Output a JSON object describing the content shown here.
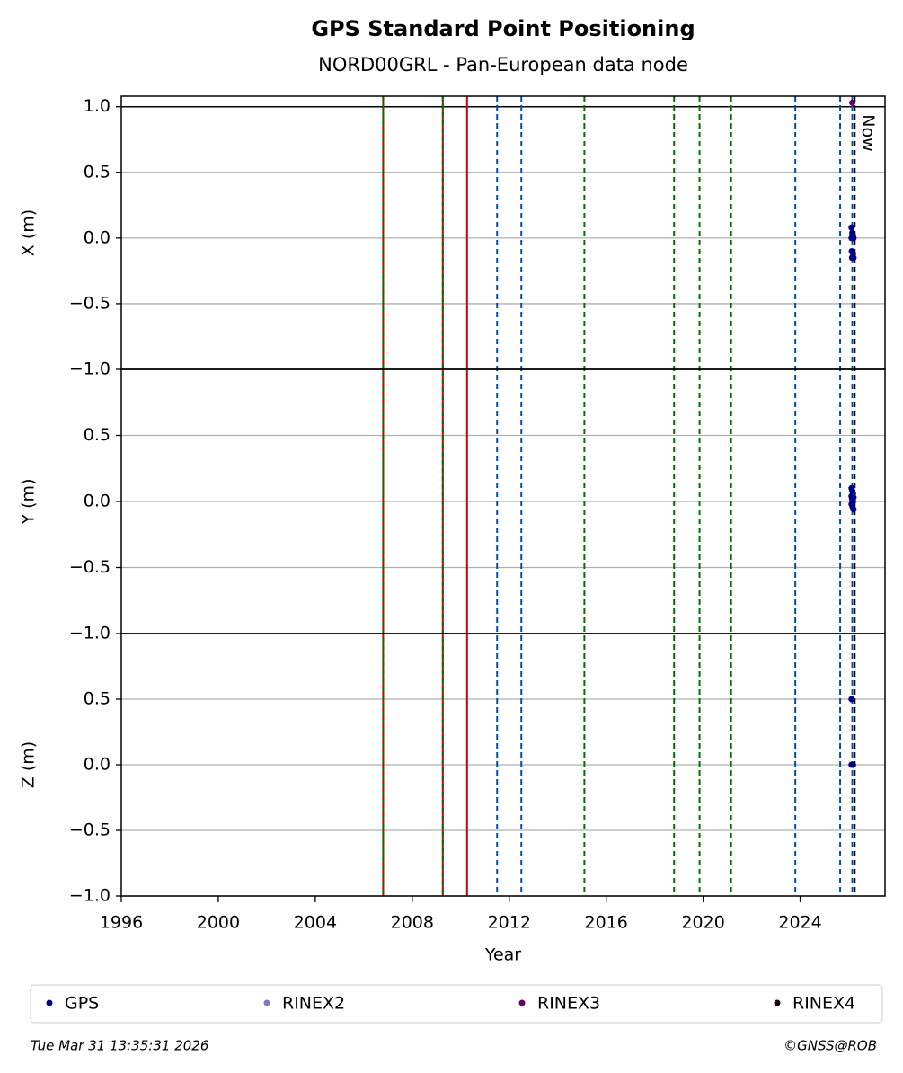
{
  "title": "GPS Standard Point Positioning",
  "subtitle": "NORD00GRL - Pan-European data node",
  "footer_left": "Tue Mar 31 13:35:31 2026",
  "footer_right": "©GNSS@ROB",
  "legend": [
    {
      "name": "GPS",
      "color": "#00008b"
    },
    {
      "name": "RINEX2",
      "color": "#7b7bc8"
    },
    {
      "name": "RINEX3",
      "color": "#660066"
    },
    {
      "name": "RINEX4",
      "color": "#1a0010"
    }
  ],
  "shared_x": {
    "xlabel": "Year",
    "xlim": [
      1996,
      2027.5
    ],
    "xticks": [
      1996,
      2000,
      2004,
      2008,
      2012,
      2016,
      2020,
      2024
    ],
    "vlines": [
      {
        "x": 2006.8,
        "color": "#d00000",
        "dash": "none"
      },
      {
        "x": 2006.8,
        "color": "#007000",
        "dash": "5,4"
      },
      {
        "x": 2009.26,
        "color": "#d00000",
        "dash": "none"
      },
      {
        "x": 2009.26,
        "color": "#007000",
        "dash": "5,4"
      },
      {
        "x": 2010.26,
        "color": "#d00000",
        "dash": "none"
      },
      {
        "x": 2011.5,
        "color": "#0050a0",
        "dash": "6,4"
      },
      {
        "x": 2012.5,
        "color": "#0050a0",
        "dash": "6,4"
      },
      {
        "x": 2015.1,
        "color": "#007000",
        "dash": "6,4"
      },
      {
        "x": 2018.8,
        "color": "#007000",
        "dash": "6,4"
      },
      {
        "x": 2019.85,
        "color": "#007000",
        "dash": "6,4"
      },
      {
        "x": 2021.15,
        "color": "#007000",
        "dash": "6,4"
      },
      {
        "x": 2023.8,
        "color": "#0050a0",
        "dash": "6,4"
      },
      {
        "x": 2025.65,
        "color": "#0050a0",
        "dash": "6,4"
      },
      {
        "x": 2026.15,
        "color": "#0050a0",
        "dash": "6,4"
      },
      {
        "x": 2026.25,
        "color": "#000000",
        "dash": "6,4"
      }
    ],
    "now_x": 2026.25,
    "now_label": "Now"
  },
  "chart_data": [
    {
      "type": "scatter",
      "ylabel": "X (m)",
      "ylim": [
        -1,
        1.08
      ],
      "hline": 1,
      "yticks": [
        {
          "value": -1,
          "label": "−1.0"
        },
        {
          "value": -0.5,
          "label": "−0.5"
        },
        {
          "value": 0,
          "label": "0.0"
        },
        {
          "value": 0.5,
          "label": "0.5"
        },
        {
          "value": 1,
          "label": "1.0"
        }
      ],
      "series": [
        {
          "name": "GPS",
          "color": "#00008b",
          "x": [
            2026.12,
            2026.15,
            2026.18,
            2026.12,
            2026.16,
            2026.2,
            2026.13,
            2026.18,
            2026.14,
            2026.2
          ],
          "values": [
            0.08,
            0.04,
            0.02,
            0.0,
            0.01,
            0.0,
            -0.1,
            -0.12,
            -0.15,
            -0.15
          ]
        },
        {
          "name": "RINEX3",
          "color": "#660066",
          "x": [
            2026.15
          ],
          "values": [
            1.03
          ]
        }
      ]
    },
    {
      "type": "scatter",
      "ylabel": "Y (m)",
      "ylim": [
        -1,
        1
      ],
      "yticks": [
        {
          "value": -1,
          "label": "−1.0"
        },
        {
          "value": -0.5,
          "label": "−0.5"
        },
        {
          "value": 0,
          "label": "0.0"
        },
        {
          "value": 0.5,
          "label": "0.5"
        }
      ],
      "series": [
        {
          "name": "GPS",
          "color": "#00008b",
          "x": [
            2026.12,
            2026.15,
            2026.18,
            2026.12,
            2026.2,
            2026.14,
            2026.18,
            2026.12,
            2026.16,
            2026.2
          ],
          "values": [
            0.1,
            0.08,
            0.06,
            0.04,
            0.03,
            0.02,
            0.0,
            -0.02,
            -0.04,
            -0.06
          ]
        }
      ]
    },
    {
      "type": "scatter",
      "ylabel": "Z (m)",
      "ylim": [
        -1,
        1
      ],
      "yticks": [
        {
          "value": -1,
          "label": "−1.0"
        },
        {
          "value": -0.5,
          "label": "−0.5"
        },
        {
          "value": 0,
          "label": "0.0"
        },
        {
          "value": 0.5,
          "label": "0.5"
        }
      ],
      "series": [
        {
          "name": "GPS",
          "color": "#00008b",
          "x": [
            2026.12,
            2026.12,
            2026.18
          ],
          "values": [
            0.5,
            0.0,
            0.0
          ]
        }
      ]
    }
  ]
}
